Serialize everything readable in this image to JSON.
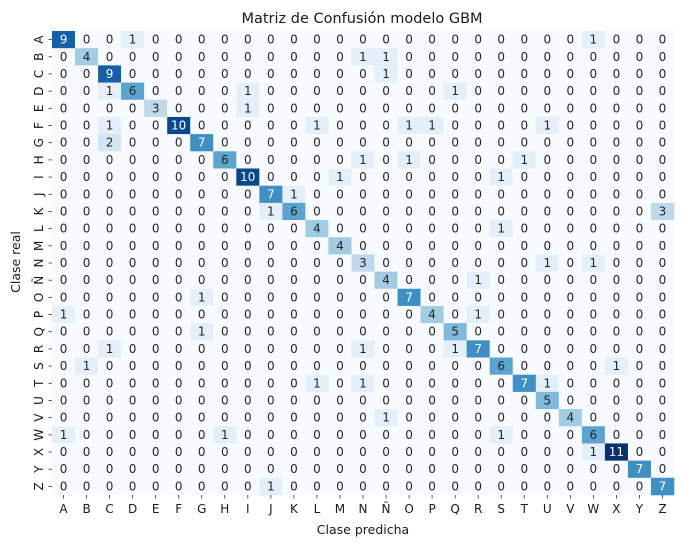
{
  "chart_data": {
    "type": "heatmap",
    "title": "Matriz de Confusión modelo GBM",
    "xlabel": "Clase predicha",
    "ylabel": "Clase real",
    "x_labels": [
      "A",
      "B",
      "C",
      "D",
      "E",
      "F",
      "G",
      "H",
      "I",
      "J",
      "K",
      "L",
      "M",
      "N",
      "Ñ",
      "O",
      "P",
      "Q",
      "R",
      "S",
      "T",
      "U",
      "V",
      "W",
      "X",
      "Y",
      "Z"
    ],
    "y_labels": [
      "A",
      "B",
      "C",
      "D",
      "E",
      "F",
      "G",
      "H",
      "I",
      "J",
      "K",
      "L",
      "M",
      "N",
      "Ñ",
      "O",
      "P",
      "Q",
      "R",
      "S",
      "T",
      "U",
      "V",
      "W",
      "X",
      "Y",
      "Z"
    ],
    "values": [
      [
        9,
        0,
        0,
        1,
        0,
        0,
        0,
        0,
        0,
        0,
        0,
        0,
        0,
        0,
        0,
        0,
        0,
        0,
        0,
        0,
        0,
        0,
        0,
        1,
        0,
        0,
        0
      ],
      [
        0,
        4,
        0,
        0,
        0,
        0,
        0,
        0,
        0,
        0,
        0,
        0,
        0,
        1,
        1,
        0,
        0,
        0,
        0,
        0,
        0,
        0,
        0,
        0,
        0,
        0,
        0
      ],
      [
        0,
        0,
        9,
        0,
        0,
        0,
        0,
        0,
        0,
        0,
        0,
        0,
        0,
        0,
        1,
        0,
        0,
        0,
        0,
        0,
        0,
        0,
        0,
        0,
        0,
        0,
        0
      ],
      [
        0,
        0,
        1,
        6,
        0,
        0,
        0,
        0,
        1,
        0,
        0,
        0,
        0,
        0,
        0,
        0,
        0,
        1,
        0,
        0,
        0,
        0,
        0,
        0,
        0,
        0,
        0
      ],
      [
        0,
        0,
        0,
        0,
        3,
        0,
        0,
        0,
        1,
        0,
        0,
        0,
        0,
        0,
        0,
        0,
        0,
        0,
        0,
        0,
        0,
        0,
        0,
        0,
        0,
        0,
        0
      ],
      [
        0,
        0,
        1,
        0,
        0,
        10,
        0,
        0,
        0,
        0,
        0,
        1,
        0,
        0,
        0,
        1,
        1,
        0,
        0,
        0,
        0,
        1,
        0,
        0,
        0,
        0,
        0
      ],
      [
        0,
        0,
        2,
        0,
        0,
        0,
        7,
        0,
        0,
        0,
        0,
        0,
        0,
        0,
        0,
        0,
        0,
        0,
        0,
        0,
        0,
        0,
        0,
        0,
        0,
        0,
        0
      ],
      [
        0,
        0,
        0,
        0,
        0,
        0,
        0,
        6,
        0,
        0,
        0,
        0,
        0,
        1,
        0,
        1,
        0,
        0,
        0,
        0,
        1,
        0,
        0,
        0,
        0,
        0,
        0
      ],
      [
        0,
        0,
        0,
        0,
        0,
        0,
        0,
        0,
        10,
        0,
        0,
        0,
        1,
        0,
        0,
        0,
        0,
        0,
        0,
        1,
        0,
        0,
        0,
        0,
        0,
        0,
        0
      ],
      [
        0,
        0,
        0,
        0,
        0,
        0,
        0,
        0,
        0,
        7,
        1,
        0,
        0,
        0,
        0,
        0,
        0,
        0,
        0,
        0,
        0,
        0,
        0,
        0,
        0,
        0,
        0
      ],
      [
        0,
        0,
        0,
        0,
        0,
        0,
        0,
        0,
        0,
        1,
        6,
        0,
        0,
        0,
        0,
        0,
        0,
        0,
        0,
        0,
        0,
        0,
        0,
        0,
        0,
        0,
        3
      ],
      [
        0,
        0,
        0,
        0,
        0,
        0,
        0,
        0,
        0,
        0,
        0,
        4,
        0,
        0,
        0,
        0,
        0,
        0,
        0,
        1,
        0,
        0,
        0,
        0,
        0,
        0,
        0
      ],
      [
        0,
        0,
        0,
        0,
        0,
        0,
        0,
        0,
        0,
        0,
        0,
        0,
        4,
        0,
        0,
        0,
        0,
        0,
        0,
        0,
        0,
        0,
        0,
        0,
        0,
        0,
        0
      ],
      [
        0,
        0,
        0,
        0,
        0,
        0,
        0,
        0,
        0,
        0,
        0,
        0,
        0,
        3,
        0,
        0,
        0,
        0,
        0,
        0,
        0,
        1,
        0,
        1,
        0,
        0,
        0
      ],
      [
        0,
        0,
        0,
        0,
        0,
        0,
        0,
        0,
        0,
        0,
        0,
        0,
        0,
        0,
        4,
        0,
        0,
        0,
        1,
        0,
        0,
        0,
        0,
        0,
        0,
        0,
        0
      ],
      [
        0,
        0,
        0,
        0,
        0,
        0,
        1,
        0,
        0,
        0,
        0,
        0,
        0,
        0,
        0,
        7,
        0,
        0,
        0,
        0,
        0,
        0,
        0,
        0,
        0,
        0,
        0
      ],
      [
        1,
        0,
        0,
        0,
        0,
        0,
        0,
        0,
        0,
        0,
        0,
        0,
        0,
        0,
        0,
        0,
        4,
        0,
        1,
        0,
        0,
        0,
        0,
        0,
        0,
        0,
        0
      ],
      [
        0,
        0,
        0,
        0,
        0,
        0,
        1,
        0,
        0,
        0,
        0,
        0,
        0,
        0,
        0,
        0,
        0,
        5,
        0,
        0,
        0,
        0,
        0,
        0,
        0,
        0,
        0
      ],
      [
        0,
        0,
        1,
        0,
        0,
        0,
        0,
        0,
        0,
        0,
        0,
        0,
        0,
        1,
        0,
        0,
        0,
        1,
        7,
        0,
        0,
        0,
        0,
        0,
        0,
        0,
        0
      ],
      [
        0,
        1,
        0,
        0,
        0,
        0,
        0,
        0,
        0,
        0,
        0,
        0,
        0,
        0,
        0,
        0,
        0,
        0,
        0,
        6,
        0,
        0,
        0,
        0,
        1,
        0,
        0
      ],
      [
        0,
        0,
        0,
        0,
        0,
        0,
        0,
        0,
        0,
        0,
        0,
        1,
        0,
        1,
        0,
        0,
        0,
        0,
        0,
        0,
        7,
        1,
        0,
        0,
        0,
        0,
        0
      ],
      [
        0,
        0,
        0,
        0,
        0,
        0,
        0,
        0,
        0,
        0,
        0,
        0,
        0,
        0,
        0,
        0,
        0,
        0,
        0,
        0,
        0,
        5,
        0,
        0,
        0,
        0,
        0
      ],
      [
        0,
        0,
        0,
        0,
        0,
        0,
        0,
        0,
        0,
        0,
        0,
        0,
        0,
        0,
        1,
        0,
        0,
        0,
        0,
        0,
        0,
        0,
        4,
        0,
        0,
        0,
        0
      ],
      [
        1,
        0,
        0,
        0,
        0,
        0,
        0,
        1,
        0,
        0,
        0,
        0,
        0,
        0,
        0,
        0,
        0,
        0,
        0,
        1,
        0,
        0,
        0,
        6,
        0,
        0,
        0
      ],
      [
        0,
        0,
        0,
        0,
        0,
        0,
        0,
        0,
        0,
        0,
        0,
        0,
        0,
        0,
        0,
        0,
        0,
        0,
        0,
        0,
        0,
        0,
        0,
        1,
        11,
        0,
        0
      ],
      [
        0,
        0,
        0,
        0,
        0,
        0,
        0,
        0,
        0,
        0,
        0,
        0,
        0,
        0,
        0,
        0,
        0,
        0,
        0,
        0,
        0,
        0,
        0,
        0,
        0,
        7,
        0
      ],
      [
        0,
        0,
        0,
        0,
        0,
        0,
        0,
        0,
        0,
        1,
        0,
        0,
        0,
        0,
        0,
        0,
        0,
        0,
        0,
        0,
        0,
        0,
        0,
        0,
        0,
        0,
        7
      ]
    ],
    "colormap": "Blues",
    "vmin": 0,
    "vmax": 11,
    "colorbar": false,
    "grid": false,
    "colors": {
      "low": "#f7fbff",
      "mid": "#6baed6",
      "high": "#08306b",
      "text_dark": "#262626",
      "text_light": "#ffffff"
    }
  }
}
